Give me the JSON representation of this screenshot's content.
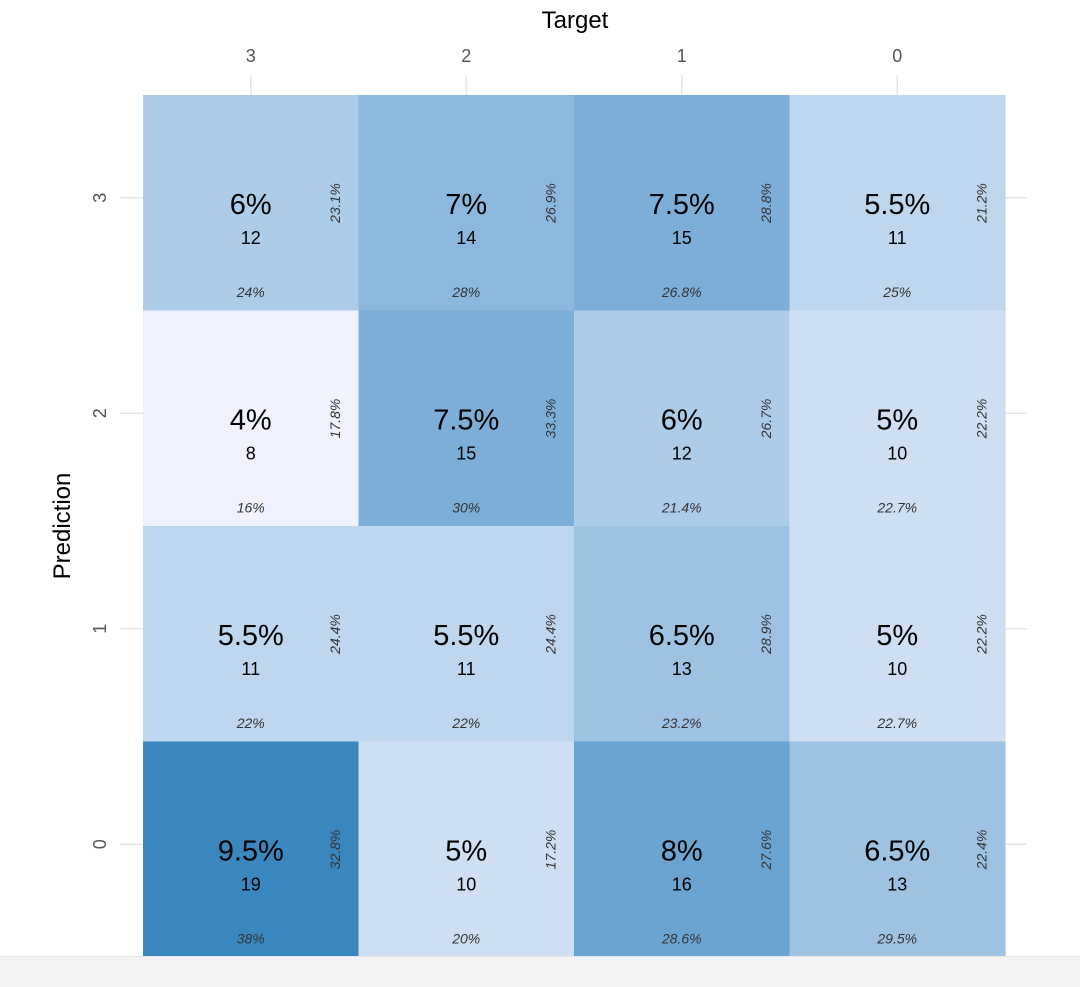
{
  "chart_data": {
    "type": "heatmap",
    "title": "",
    "xlabel": "Target",
    "ylabel": "Prediction",
    "x_categories": [
      "3",
      "2",
      "1",
      "0"
    ],
    "y_categories": [
      "3",
      "2",
      "1",
      "0"
    ],
    "grid": true,
    "colors": {
      "low": "#eff3ff",
      "high": "#3a87c0"
    },
    "cells": [
      [
        {
          "pct": "6%",
          "count": 12,
          "col_pct": "24%",
          "row_pct": "23.1%"
        },
        {
          "pct": "7%",
          "count": 14,
          "col_pct": "28%",
          "row_pct": "26.9%"
        },
        {
          "pct": "7.5%",
          "count": 15,
          "col_pct": "26.8%",
          "row_pct": "28.8%"
        },
        {
          "pct": "5.5%",
          "count": 11,
          "col_pct": "25%",
          "row_pct": "21.2%"
        }
      ],
      [
        {
          "pct": "4%",
          "count": 8,
          "col_pct": "16%",
          "row_pct": "17.8%"
        },
        {
          "pct": "7.5%",
          "count": 15,
          "col_pct": "30%",
          "row_pct": "33.3%"
        },
        {
          "pct": "6%",
          "count": 12,
          "col_pct": "21.4%",
          "row_pct": "26.7%"
        },
        {
          "pct": "5%",
          "count": 10,
          "col_pct": "22.7%",
          "row_pct": "22.2%"
        }
      ],
      [
        {
          "pct": "5.5%",
          "count": 11,
          "col_pct": "22%",
          "row_pct": "24.4%"
        },
        {
          "pct": "5.5%",
          "count": 11,
          "col_pct": "22%",
          "row_pct": "24.4%"
        },
        {
          "pct": "6.5%",
          "count": 13,
          "col_pct": "23.2%",
          "row_pct": "28.9%"
        },
        {
          "pct": "5%",
          "count": 10,
          "col_pct": "22.7%",
          "row_pct": "22.2%"
        }
      ],
      [
        {
          "pct": "9.5%",
          "count": 19,
          "col_pct": "38%",
          "row_pct": "32.8%"
        },
        {
          "pct": "5%",
          "count": 10,
          "col_pct": "20%",
          "row_pct": "17.2%"
        },
        {
          "pct": "8%",
          "count": 16,
          "col_pct": "28.6%",
          "row_pct": "27.6%"
        },
        {
          "pct": "6.5%",
          "count": 13,
          "col_pct": "29.5%",
          "row_pct": "22.4%"
        }
      ]
    ]
  }
}
